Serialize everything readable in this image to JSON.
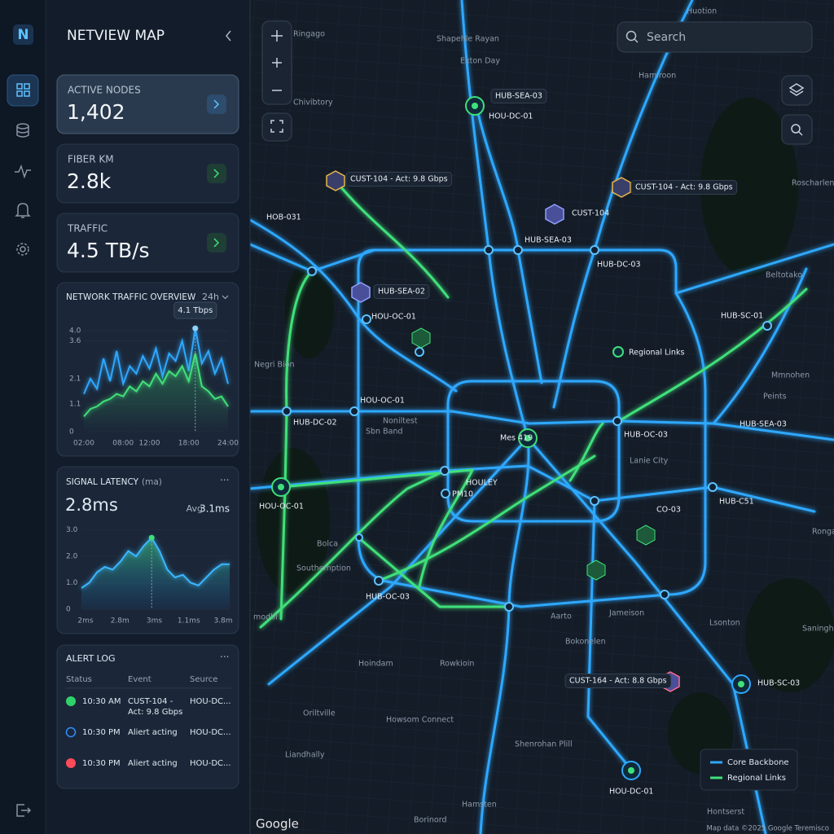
{
  "brand": "N",
  "panel": {
    "title": "NETVIEW MAP"
  },
  "stats": [
    {
      "label": "ACTIVE NODES",
      "value": "1,402"
    },
    {
      "label": "FIBER KM",
      "value": "2.8k"
    },
    {
      "label": "TRAFFIC",
      "value": "4.5 TB/s"
    }
  ],
  "traffic_chart": {
    "type": "line",
    "title": "NETWORK TRAFFIC OVERVIEW",
    "range": "24h",
    "tooltip": "4.1 Tbps",
    "x": [
      2,
      3,
      4,
      5,
      6,
      7,
      8,
      9,
      10,
      11,
      12,
      13,
      14,
      15,
      16,
      17,
      18,
      19,
      20,
      21,
      22,
      23,
      24
    ],
    "series": [
      {
        "color": "#2ea8ff",
        "values": [
          1.5,
          2.1,
          1.7,
          2.9,
          2.0,
          3.2,
          1.9,
          2.6,
          2.3,
          3.0,
          2.5,
          3.3,
          2.2,
          3.1,
          2.8,
          3.6,
          2.4,
          4.1,
          2.7,
          3.2,
          2.3,
          2.9,
          1.9
        ]
      },
      {
        "color": "#3fe07a",
        "values": [
          0.6,
          0.9,
          1.0,
          1.2,
          1.3,
          1.5,
          1.4,
          1.8,
          1.6,
          2.0,
          1.8,
          2.3,
          1.9,
          2.4,
          2.2,
          2.6,
          2.0,
          3.1,
          1.8,
          1.6,
          1.3,
          1.4,
          1.0
        ]
      }
    ],
    "xlim": [
      2,
      24
    ],
    "xticks": [
      {
        "value": 2,
        "label": "02:00"
      },
      {
        "value": 8,
        "label": "08:00"
      },
      {
        "value": 12,
        "label": "12:00"
      },
      {
        "value": 18,
        "label": "18:00"
      },
      {
        "value": 24,
        "label": "24:00"
      }
    ],
    "ylim": [
      0,
      4.2
    ],
    "yticks": [
      0,
      1.1,
      2.1,
      3.6,
      {
        "value": 4,
        "label": "4.0"
      }
    ]
  },
  "latency_chart": {
    "type": "area",
    "title": "SIGNAL LATENCY",
    "unit": "(ma)",
    "current": "2.8ms",
    "average_label": "Avg",
    "average": "3.1ms",
    "color": "#3fe07a",
    "values": [
      0.8,
      1.0,
      1.4,
      1.6,
      1.5,
      1.8,
      2.2,
      2.0,
      2.4,
      2.7,
      2.2,
      1.5,
      1.2,
      1.3,
      1.0,
      0.9,
      1.2,
      1.5,
      1.7,
      1.7
    ],
    "categories": [
      "2ms",
      "2.8m",
      "3ms",
      "1.1ms",
      "3.8m"
    ],
    "ylim": [
      0,
      3.2
    ],
    "yticks": [
      0,
      {
        "value": 1,
        "label": "1.0"
      },
      {
        "value": 2,
        "label": "2.0"
      },
      {
        "value": 3,
        "label": "3.0"
      }
    ]
  },
  "alert_log": {
    "title": "ALERT LOG",
    "columns": [
      "Status",
      "Event",
      "Seurce"
    ],
    "rows": [
      {
        "status": "ok",
        "time": "10:30 AM",
        "event": "CUST-104 - Act: 9.8 Gbps",
        "source": "HOU-DC..."
      },
      {
        "status": "info",
        "time": "10:30 PM",
        "event": "Aliert acting",
        "source": "HOU-DC..."
      },
      {
        "status": "error",
        "time": "10:30 PM",
        "event": "Aliert acting",
        "source": "HOU-DC..."
      }
    ]
  },
  "map": {
    "search": "Search",
    "legend": [
      {
        "name": "Core Backbone",
        "color": "#2ea8ff"
      },
      {
        "name": "Regional Links",
        "color": "#3fe07a"
      }
    ],
    "places": [
      "Ringago",
      "Shapehle Rayan",
      "Exton Day",
      "Hamiroon",
      "Chivibtory",
      "Roscharlen",
      "Beltotako",
      "Negri Bion",
      "Mmnohen",
      "Peints",
      "Noniltest",
      "Sbn Band",
      "Lanie City",
      "Rongai",
      "Bolca",
      "Southemption",
      "Aarto",
      "Jameison",
      "Lsonton",
      "Saninghe",
      "modbi",
      "Hoindam",
      "Rowkioin",
      "Bokonelen",
      "Oriltville",
      "Howsom Connect",
      "Shenrohan Plill",
      "Liandhally",
      "Hamsten",
      "Borinord",
      "Hontserst",
      "Huotion"
    ],
    "nodes": [
      "HUB-SEA-03",
      "HOU-DC-01",
      "CUST-104 - Act: 9.8 Gbps",
      "CUST-104 - Act: 9.8 Gbps",
      "CUST-104",
      "HOB-031",
      "HUB-SEA-03",
      "HUB-DC-03",
      "HUB-SEA-02",
      "HOU-OC-01",
      "HUB-SC-01",
      "Regional Links",
      "HOU-OC-01",
      "HUB-DC-02",
      "HUB-OC-03",
      "HUB-SEA-03",
      "Mes 419",
      "HOULEY",
      "PM10",
      "HUB-C51",
      "HOU-OC-01",
      "CO-03",
      "HUB-OC-03",
      "CUST-164 - Act: 8.8 Gbps",
      "HUB-SC-03",
      "HOU-DC-01"
    ],
    "provider": "Google",
    "attribution": "Map data ©2025 Google Teremisco"
  }
}
